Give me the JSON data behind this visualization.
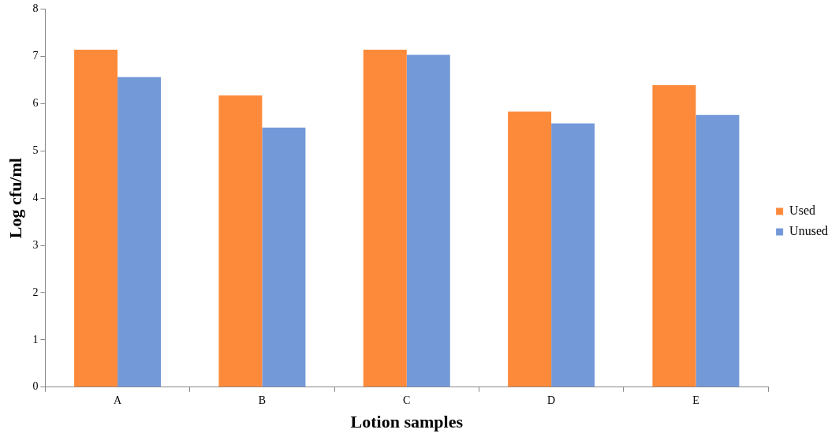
{
  "chart_data": {
    "type": "bar",
    "xlabel": "Lotion samples",
    "ylabel": "Log cfu/ml",
    "categories": [
      "A",
      "B",
      "C",
      "D",
      "E"
    ],
    "series": [
      {
        "name": "Used",
        "color": "#fd8a3b",
        "values": [
          7.14,
          6.17,
          7.14,
          5.83,
          6.39
        ]
      },
      {
        "name": "Unused",
        "color": "#7399d8",
        "values": [
          6.56,
          5.49,
          7.03,
          5.58,
          5.76
        ]
      }
    ],
    "ylim": [
      0,
      8
    ],
    "yticks": [
      0,
      1,
      2,
      3,
      4,
      5,
      6,
      7,
      8
    ],
    "grid": false,
    "legend": "right"
  }
}
